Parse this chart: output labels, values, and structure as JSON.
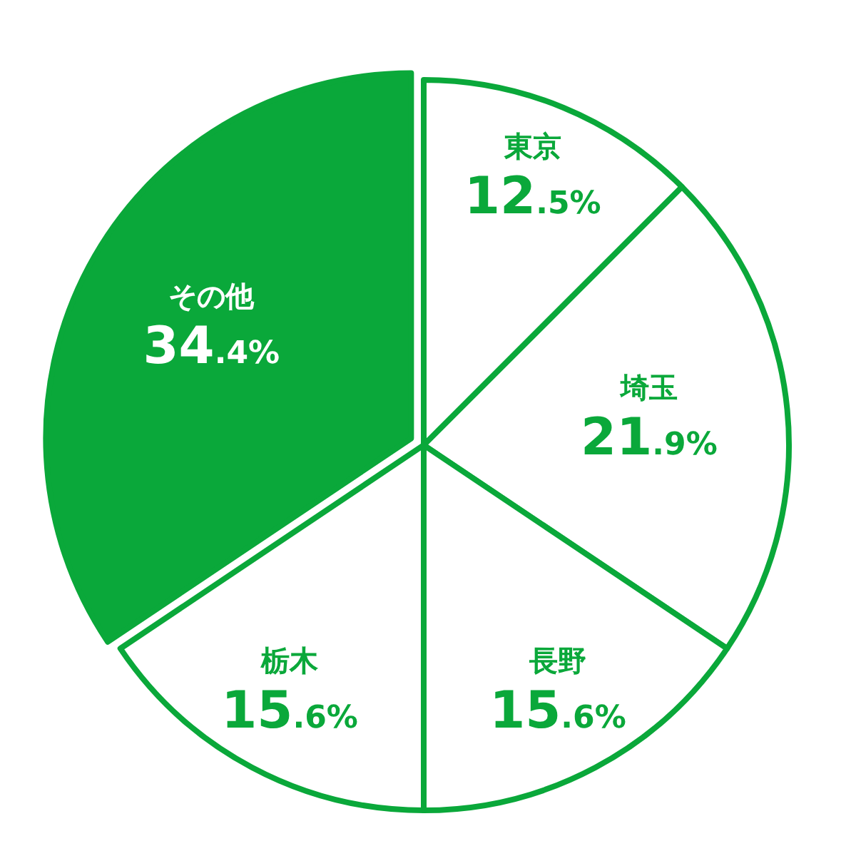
{
  "chart_data": {
    "type": "pie",
    "categories": [
      "東京",
      "埼玉",
      "長野",
      "栃木",
      "その他"
    ],
    "values": [
      12.5,
      21.9,
      15.6,
      15.6,
      34.4
    ],
    "value_labels": [
      "12.5%",
      "21.9%",
      "15.6%",
      "15.6%",
      "34.4%"
    ],
    "colors": [
      "#ffffff",
      "#ffffff",
      "#ffffff",
      "#ffffff",
      "#0aa83a"
    ]
  }
}
